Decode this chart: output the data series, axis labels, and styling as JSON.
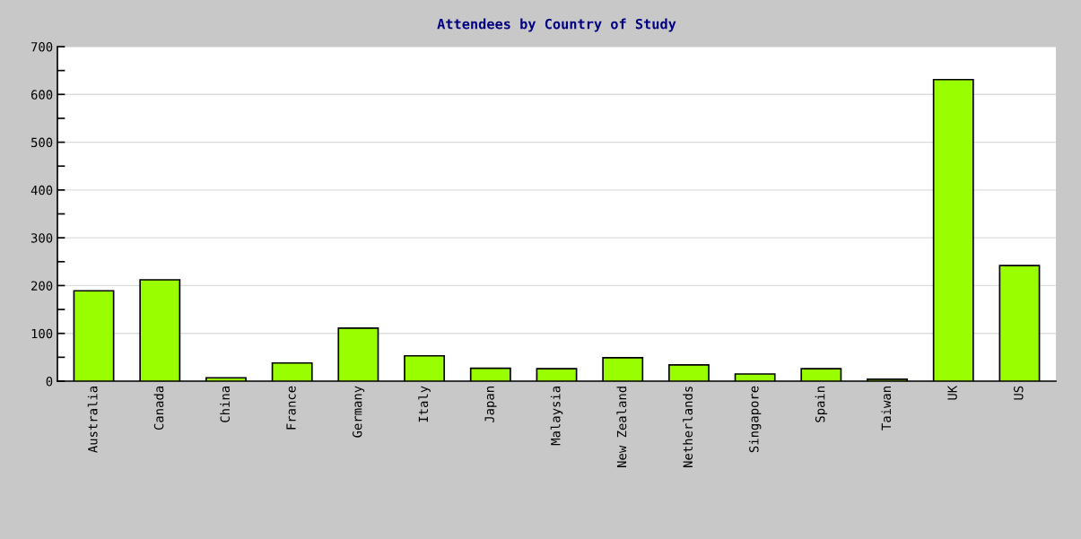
{
  "chart_data": {
    "type": "bar",
    "title": "Attendees by Country of Study",
    "categories": [
      "Australia",
      "Canada",
      "China",
      "France",
      "Germany",
      "Italy",
      "Japan",
      "Malaysia",
      "New Zealand",
      "Netherlands",
      "Singapore",
      "Spain",
      "Taiwan",
      "UK",
      "US"
    ],
    "values": [
      189,
      212,
      7,
      38,
      111,
      53,
      27,
      26,
      49,
      34,
      15,
      26,
      4,
      631,
      242
    ],
    "color": "#99ff00",
    "ylim": [
      0,
      700
    ],
    "yticks": [
      0,
      {
        "value": 50,
        "label": null
      },
      100,
      {
        "value": 150,
        "label": null
      },
      200,
      {
        "value": 250,
        "label": null
      },
      300,
      {
        "value": 350,
        "label": null
      },
      400,
      {
        "value": 450,
        "label": null
      },
      500,
      {
        "value": 550,
        "label": null
      },
      600,
      {
        "value": 650,
        "label": null
      },
      700
    ],
    "grid": "y"
  }
}
